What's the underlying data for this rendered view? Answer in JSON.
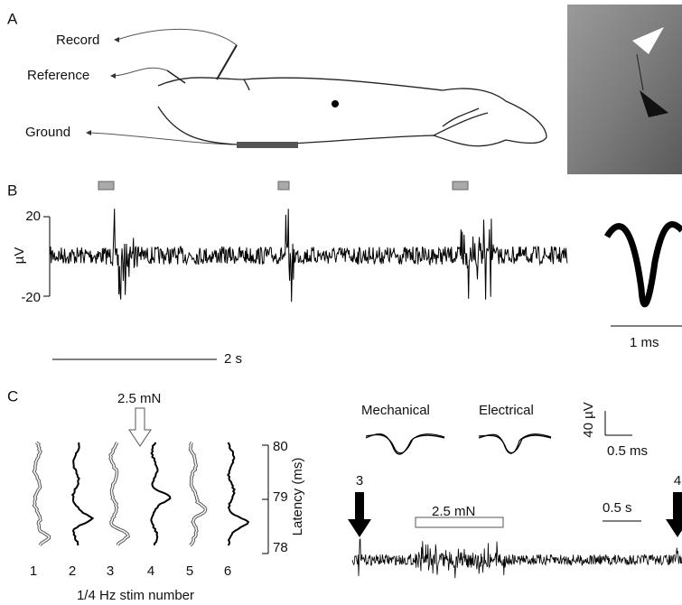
{
  "panel_a": {
    "label": "A",
    "record": "Record",
    "reference": "Reference",
    "ground": "Ground"
  },
  "panel_b": {
    "label": "B",
    "y_label": "µV",
    "y_ticks": [
      "20",
      "-20"
    ],
    "scale_bar": "2 s",
    "inset_scale": "1 ms"
  },
  "panel_c": {
    "label": "C",
    "stimulus": "2.5 mN",
    "y_label": "Latency (ms)",
    "y_ticks": [
      "80",
      "79",
      "78"
    ],
    "x_labels": [
      "1",
      "2",
      "3",
      "4",
      "5",
      "6"
    ],
    "x_title": "1/4 Hz stim number",
    "mechanical": "Mechanical",
    "electrical": "Electrical",
    "scale_v": "40 µV",
    "scale_t": "0.5 ms",
    "arrows": [
      "3",
      "4"
    ],
    "bar_label": "2.5 mN",
    "scale_s": "0.5 s"
  }
}
